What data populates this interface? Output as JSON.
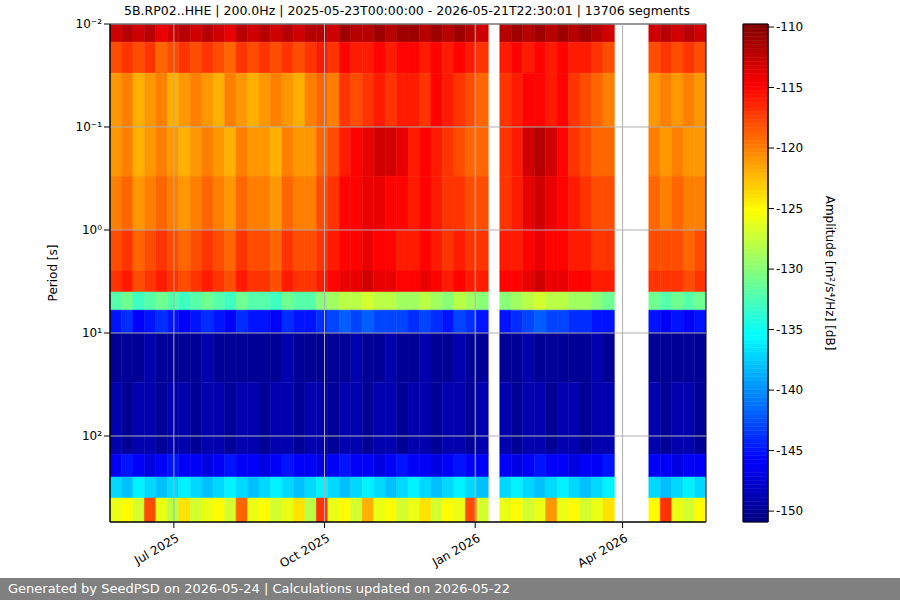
{
  "chart_data": {
    "type": "heatmap",
    "title": "5B.RP02..HHE | 200.0Hz | 2025-05-23T00:00:00 - 2026-05-21T22:30:01 | 13706 segments",
    "footer": "Generated by SeedPSD on 2026-05-24 | Calculations updated on 2026-05-22",
    "y_label": "Period [s]",
    "colorbar_label": "Amplitude [m²/s⁴/Hz] [dB]",
    "log": "y",
    "grid": true,
    "xlim": [
      "2025-05-23T00:00:00",
      "2026-05-21T22:30:01"
    ],
    "xticks": [
      {
        "value": "2025-07-01T00:00:00",
        "label": "Jul 2025"
      },
      {
        "value": "2025-10-01T00:00:00",
        "label": "Oct 2025"
      },
      {
        "value": "2026-01-01T00:00:00",
        "label": "Jan 2026"
      },
      {
        "value": "2026-04-01T00:00:00",
        "label": "Apr 2026"
      }
    ],
    "ylim": [
      0.01,
      684
    ],
    "yticks": [
      {
        "value": 0.01,
        "label": "10⁻²"
      },
      {
        "value": 0.1,
        "label": "10⁻¹"
      },
      {
        "value": 1,
        "label": "10⁰"
      },
      {
        "value": 10,
        "label": "10¹"
      },
      {
        "value": 100,
        "label": "10²"
      }
    ],
    "x_edges": [
      "2025-05-23T00:00:00",
      "2025-05-30T00:00:00",
      "2025-06-06T00:00:00",
      "2025-06-13T00:00:00",
      "2025-06-20T00:00:00",
      "2025-06-27T00:00:00",
      "2025-07-04T00:00:00",
      "2025-07-11T00:00:00",
      "2025-07-18T00:00:00",
      "2025-07-25T00:00:00",
      "2025-08-01T00:00:00",
      "2025-08-08T00:00:00",
      "2025-08-15T00:00:00",
      "2025-08-22T00:00:00",
      "2025-08-29T00:00:00",
      "2025-09-05T00:00:00",
      "2025-09-12T00:00:00",
      "2025-09-19T00:00:00",
      "2025-09-26T00:00:00",
      "2025-10-03T00:00:00",
      "2025-10-10T00:00:00",
      "2025-10-17T00:00:00",
      "2025-10-24T00:00:00",
      "2025-10-31T00:00:00",
      "2025-11-07T00:00:00",
      "2025-11-14T00:00:00",
      "2025-11-21T00:00:00",
      "2025-11-28T00:00:00",
      "2025-12-05T00:00:00",
      "2025-12-12T00:00:00",
      "2025-12-19T00:00:00",
      "2025-12-26T00:00:00",
      "2026-01-02T00:00:00",
      "2026-01-09T00:00:00",
      "2026-01-16T00:00:00",
      "2026-01-23T00:00:00",
      "2026-01-30T00:00:00",
      "2026-02-06T00:00:00",
      "2026-02-13T00:00:00",
      "2026-02-20T00:00:00",
      "2026-02-27T00:00:00",
      "2026-03-06T00:00:00",
      "2026-03-13T00:00:00",
      "2026-03-20T00:00:00",
      "2026-03-27T00:00:00",
      "2026-04-03T00:00:00",
      "2026-04-10T00:00:00",
      "2026-04-17T00:00:00",
      "2026-04-24T00:00:00",
      "2026-05-01T00:00:00",
      "2026-05-08T00:00:00",
      "2026-05-15T00:00:00",
      "2026-05-21T22:30:01"
    ],
    "y_edges": [
      0.01,
      0.015,
      0.03,
      0.1,
      0.3,
      1,
      2.5,
      4,
      6,
      10,
      30,
      150,
      250,
      400,
      684
    ],
    "cells": [
      [
        -113,
        -112,
        -113,
        -112,
        -114,
        -113,
        -112,
        -113,
        -112,
        -113,
        -114,
        -112,
        -113,
        -112,
        -113,
        -112,
        -113,
        -112,
        -112,
        -113,
        -111,
        -112,
        -112,
        -111,
        -112,
        -111,
        -111,
        -112,
        -111,
        -112,
        -111,
        -112,
        -113,
        null,
        -112,
        -111,
        -112,
        -111,
        -112,
        -111,
        -112,
        -111,
        -112,
        -113,
        null,
        null,
        null,
        -113,
        -112,
        -113,
        -112,
        -113
      ],
      [
        -118,
        -117,
        -118,
        -117,
        -119,
        -118,
        -117,
        -118,
        -117,
        -118,
        -119,
        -117,
        -118,
        -117,
        -118,
        -117,
        -118,
        -117,
        -116,
        -117,
        -115,
        -116,
        -116,
        -115,
        -116,
        -115,
        -115,
        -116,
        -115,
        -116,
        -115,
        -116,
        -117,
        null,
        -116,
        -115,
        -116,
        -115,
        -116,
        -115,
        -116,
        -116,
        -117,
        -118,
        null,
        null,
        null,
        -118,
        -117,
        -118,
        -117,
        -118
      ],
      [
        -121,
        -120,
        -122,
        -121,
        -120,
        -122,
        -121,
        -120,
        -121,
        -122,
        -120,
        -121,
        -122,
        -121,
        -120,
        -121,
        -122,
        -120,
        -119,
        -120,
        -117,
        -118,
        -117,
        -116,
        -117,
        -116,
        -116,
        -117,
        -115,
        -116,
        -117,
        -118,
        -119,
        null,
        -117,
        -116,
        -115,
        -115,
        -116,
        -115,
        -117,
        -118,
        -119,
        -120,
        null,
        null,
        null,
        -121,
        -120,
        -121,
        -120,
        -121
      ],
      [
        -121,
        -120,
        -122,
        -121,
        -120,
        -121,
        -122,
        -121,
        -120,
        -121,
        -122,
        -120,
        -121,
        -121,
        -122,
        -120,
        -121,
        -121,
        -119,
        -118,
        -116,
        -115,
        -114,
        -113,
        -113,
        -114,
        -116,
        -115,
        -116,
        -117,
        -118,
        -119,
        -119,
        null,
        -117,
        -116,
        -113,
        -112,
        -113,
        -115,
        -117,
        -118,
        -119,
        -119,
        null,
        null,
        null,
        -120,
        -121,
        -120,
        -121,
        -121
      ],
      [
        -120,
        -119,
        -121,
        -120,
        -119,
        -120,
        -121,
        -120,
        -119,
        -120,
        -121,
        -119,
        -120,
        -120,
        -121,
        -119,
        -120,
        -120,
        -118,
        -117,
        -115,
        -115,
        -114,
        -114,
        -115,
        -115,
        -116,
        -115,
        -116,
        -117,
        -117,
        -118,
        -118,
        null,
        -117,
        -116,
        -114,
        -113,
        -114,
        -115,
        -116,
        -117,
        -118,
        -118,
        null,
        null,
        null,
        -119,
        -120,
        -119,
        -120,
        -120
      ],
      [
        -118,
        -117,
        -119,
        -118,
        -117,
        -118,
        -119,
        -118,
        -117,
        -118,
        -119,
        -117,
        -118,
        -118,
        -119,
        -117,
        -118,
        -118,
        -117,
        -116,
        -115,
        -115,
        -114,
        -115,
        -115,
        -116,
        -116,
        -115,
        -116,
        -117,
        -116,
        -117,
        -117,
        null,
        -116,
        -116,
        -115,
        -114,
        -115,
        -115,
        -116,
        -116,
        -117,
        -117,
        null,
        null,
        null,
        -118,
        -118,
        -118,
        -119,
        -118
      ],
      [
        -117,
        -116,
        -118,
        -117,
        -116,
        -117,
        -118,
        -117,
        -116,
        -117,
        -118,
        -116,
        -117,
        -117,
        -118,
        -116,
        -117,
        -117,
        -116,
        -115,
        -114,
        -114,
        -113,
        -114,
        -114,
        -115,
        -115,
        -114,
        -115,
        -116,
        -115,
        -116,
        -116,
        null,
        -115,
        -115,
        -114,
        -113,
        -114,
        -114,
        -115,
        -115,
        -116,
        -116,
        null,
        null,
        null,
        -117,
        -117,
        -117,
        -118,
        -117
      ],
      [
        -132,
        -131,
        -133,
        -132,
        -131,
        -132,
        -133,
        -132,
        -131,
        -132,
        -133,
        -131,
        -132,
        -132,
        -133,
        -131,
        -132,
        -132,
        -130,
        -129,
        -128,
        -128,
        -127,
        -128,
        -128,
        -129,
        -129,
        -128,
        -129,
        -130,
        -128,
        -129,
        -130,
        null,
        -130,
        -129,
        -128,
        -127,
        -128,
        -128,
        -129,
        -129,
        -130,
        -131,
        null,
        null,
        null,
        -131,
        -132,
        -131,
        -132,
        -131
      ],
      [
        -145,
        -144,
        -146,
        -145,
        -144,
        -145,
        -146,
        -145,
        -144,
        -145,
        -146,
        -144,
        -145,
        -145,
        -146,
        -144,
        -145,
        -145,
        -144,
        -143,
        -142,
        -143,
        -142,
        -143,
        -143,
        -143,
        -144,
        -143,
        -144,
        -145,
        -143,
        -144,
        -145,
        null,
        -145,
        -144,
        -143,
        -142,
        -143,
        -143,
        -144,
        -144,
        -145,
        -145,
        null,
        null,
        null,
        -145,
        -146,
        -145,
        -146,
        -145
      ],
      [
        -150,
        -150,
        -150,
        -149,
        -150,
        -150,
        -150,
        -150,
        -149,
        -150,
        -150,
        -150,
        -150,
        -150,
        -150,
        -149,
        -150,
        -150,
        -150,
        -150,
        -150,
        -149,
        -150,
        -150,
        -149,
        -150,
        -150,
        -149,
        -150,
        -150,
        -149,
        -150,
        -150,
        null,
        -150,
        -150,
        -149,
        -150,
        -150,
        -150,
        -150,
        -150,
        -149,
        -150,
        null,
        null,
        null,
        -150,
        -150,
        -150,
        -150,
        -150
      ],
      [
        -149,
        -150,
        -149,
        -149,
        -150,
        -149,
        -149,
        -150,
        -149,
        -149,
        -150,
        -149,
        -149,
        -150,
        -149,
        -149,
        -150,
        -149,
        -149,
        -150,
        -149,
        -149,
        -150,
        -149,
        -149,
        -150,
        -149,
        -149,
        -150,
        -149,
        -149,
        -150,
        -149,
        null,
        -149,
        -150,
        -149,
        -149,
        -150,
        -149,
        -149,
        -150,
        -149,
        -149,
        null,
        null,
        null,
        -149,
        -150,
        -149,
        -149,
        -150
      ],
      [
        -146,
        -145,
        -146,
        -147,
        -146,
        -145,
        -146,
        -146,
        -147,
        -146,
        -145,
        -146,
        -146,
        -147,
        -146,
        -145,
        -146,
        -146,
        -147,
        -146,
        -145,
        -146,
        -146,
        -147,
        -146,
        -145,
        -146,
        -146,
        -147,
        -146,
        -145,
        -146,
        -146,
        null,
        -146,
        -147,
        -146,
        -145,
        -146,
        -146,
        -147,
        -146,
        -146,
        -145,
        null,
        null,
        null,
        -146,
        -146,
        -147,
        -146,
        -146
      ],
      [
        -137,
        -138,
        -136,
        -137,
        -138,
        -137,
        -136,
        -137,
        -138,
        -137,
        -136,
        -137,
        -138,
        -137,
        -136,
        -137,
        -138,
        -137,
        -136,
        -137,
        -138,
        -137,
        -136,
        -137,
        -138,
        -137,
        -136,
        -137,
        -138,
        -137,
        -136,
        -137,
        -138,
        null,
        -137,
        -136,
        -137,
        -138,
        -137,
        -136,
        -137,
        -138,
        -137,
        -136,
        null,
        null,
        null,
        -137,
        -138,
        -137,
        -136,
        -137
      ],
      [
        -126,
        -125,
        -127,
        -118,
        -126,
        -128,
        -124,
        -127,
        -126,
        -125,
        -127,
        -119,
        -126,
        -125,
        -127,
        -126,
        -124,
        -128,
        -117,
        -126,
        -125,
        -127,
        -122,
        -126,
        -125,
        -127,
        -126,
        -124,
        -127,
        -125,
        -126,
        -118,
        -127,
        null,
        -126,
        -125,
        -127,
        -126,
        -121,
        -126,
        -125,
        -127,
        -126,
        -124,
        null,
        null,
        null,
        -125,
        -117,
        -126,
        -127,
        -125
      ]
    ],
    "color_range": [
      -150.9,
      -109.75
    ],
    "color_ticks": [
      -150,
      -145,
      -140,
      -135,
      -130,
      -125,
      -120,
      -115,
      -110
    ]
  }
}
